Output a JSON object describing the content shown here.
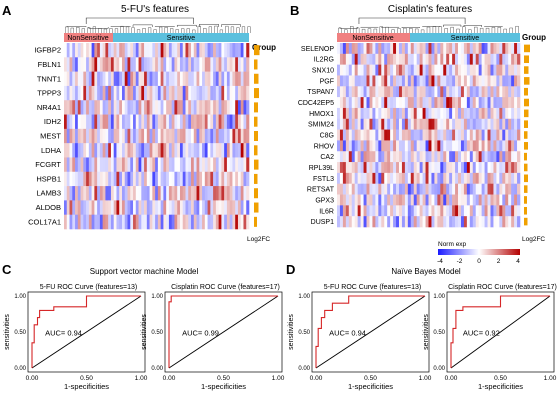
{
  "panel_letters": [
    "A",
    "B",
    "C",
    "D"
  ],
  "heatmaps": [
    {
      "title": "5-FU's features",
      "group_labels": [
        "NonSensitive",
        "Sensitive"
      ],
      "n_nonsensitive": 12,
      "n_sensitive": 55,
      "genes": [
        "IGFBP2",
        "FBLN1",
        "TNNT1",
        "TPPP3",
        "NR4A1",
        "IDH2",
        "MEST",
        "LDHA",
        "FCGRT",
        "HSPB1",
        "LAMB3",
        "ALDOB",
        "COL17A1"
      ],
      "group_col_label": "Group",
      "log2fc": [
        0.55,
        0.35,
        0.45,
        0.5,
        0.4,
        0.35,
        0.4,
        0.35,
        0.45,
        0.35,
        0.4,
        0.45,
        0.3
      ],
      "log2fc_label": "Log2FC"
    },
    {
      "title": "Cisplatin's features",
      "group_labels": [
        "NonSensitive",
        "Sensitive"
      ],
      "n_nonsensitive": 24,
      "n_sensitive": 38,
      "genes": [
        "SELENOP",
        "IL2RG",
        "SNX10",
        "PGF",
        "TSPAN7",
        "CDC42EP5",
        "HMOX1",
        "SMIM24",
        "C8G",
        "RHOV",
        "CA2",
        "RPL39L",
        "FSTL3",
        "RETSAT",
        "GPX3",
        "IL6R",
        "DUSP1"
      ],
      "group_col_label": "Group",
      "log2fc": [
        0.6,
        0.5,
        0.45,
        0.55,
        0.4,
        0.5,
        0.45,
        0.4,
        0.35,
        0.4,
        0.3,
        0.35,
        0.4,
        0.35,
        0.3,
        0.3,
        0.35
      ],
      "log2fc_label": "Log2FC"
    }
  ],
  "colorbar": {
    "title": "Norm exp",
    "ticks": [
      "-4",
      "-2",
      "0",
      "2",
      "4"
    ],
    "colors": [
      "#1a1aff",
      "#ffffff",
      "#b40000"
    ]
  },
  "model_titles": [
    "Support vector machine Model",
    "Naïve Bayes Model"
  ],
  "chart_data": [
    {
      "type": "line",
      "title": "5-FU ROC Curve (features=13)",
      "xlabel": "1-specificities",
      "ylabel": "sensitivities",
      "xlim": [
        0,
        1
      ],
      "ylim": [
        0,
        1
      ],
      "x_ticks": [
        "0.00",
        "0.50",
        "1.00"
      ],
      "y_ticks": [
        "0.00",
        "0.50",
        "1.00"
      ],
      "annotation": "AUC= 0.94",
      "roc": [
        [
          0,
          0
        ],
        [
          0,
          0.35
        ],
        [
          0.02,
          0.35
        ],
        [
          0.02,
          0.6
        ],
        [
          0.05,
          0.6
        ],
        [
          0.05,
          0.7
        ],
        [
          0.07,
          0.7
        ],
        [
          0.07,
          0.8
        ],
        [
          0.2,
          0.8
        ],
        [
          0.2,
          0.85
        ],
        [
          0.5,
          0.85
        ],
        [
          0.5,
          1
        ],
        [
          1,
          1
        ]
      ]
    },
    {
      "type": "line",
      "title": "Cisplatin ROC Curve (features=17)",
      "xlabel": "1-specificities",
      "ylabel": "sensitivities",
      "xlim": [
        0,
        1
      ],
      "ylim": [
        0,
        1
      ],
      "x_ticks": [
        "0.00",
        "0.50",
        "1.00"
      ],
      "y_ticks": [
        "0.00",
        "0.50",
        "1.00"
      ],
      "annotation": "AUC= 0.99",
      "roc": [
        [
          0,
          0
        ],
        [
          0,
          0.92
        ],
        [
          0.02,
          0.92
        ],
        [
          0.02,
          1
        ],
        [
          1,
          1
        ]
      ]
    },
    {
      "type": "line",
      "title": "5-FU ROC Curve (features=13)",
      "xlabel": "1-specificities",
      "ylabel": "sensitivities",
      "xlim": [
        0,
        1
      ],
      "ylim": [
        0,
        1
      ],
      "x_ticks": [
        "0.00",
        "0.50",
        "1.00"
      ],
      "y_ticks": [
        "0.00",
        "0.50",
        "1.00"
      ],
      "annotation": "AUC= 0.94",
      "roc": [
        [
          0,
          0
        ],
        [
          0,
          0.3
        ],
        [
          0.02,
          0.3
        ],
        [
          0.02,
          0.55
        ],
        [
          0.05,
          0.55
        ],
        [
          0.05,
          0.7
        ],
        [
          0.08,
          0.7
        ],
        [
          0.08,
          0.8
        ],
        [
          0.15,
          0.8
        ],
        [
          0.15,
          0.9
        ],
        [
          0.3,
          0.9
        ],
        [
          0.3,
          1
        ],
        [
          1,
          1
        ]
      ]
    },
    {
      "type": "line",
      "title": "Cisplatin ROC Curve (features=17)",
      "xlabel": "1-specificities",
      "ylabel": "sensitivities",
      "xlim": [
        0,
        1
      ],
      "ylim": [
        0,
        1
      ],
      "x_ticks": [
        "0.00",
        "0.50",
        "1.00"
      ],
      "y_ticks": [
        "0.00",
        "0.50",
        "1.00"
      ],
      "annotation": "AUC= 0.92",
      "roc": [
        [
          0,
          0
        ],
        [
          0,
          0.35
        ],
        [
          0.02,
          0.35
        ],
        [
          0.02,
          0.55
        ],
        [
          0.05,
          0.55
        ],
        [
          0.05,
          0.8
        ],
        [
          0.12,
          0.8
        ],
        [
          0.12,
          0.85
        ],
        [
          0.5,
          0.85
        ],
        [
          0.5,
          1
        ],
        [
          1,
          1
        ]
      ]
    }
  ]
}
